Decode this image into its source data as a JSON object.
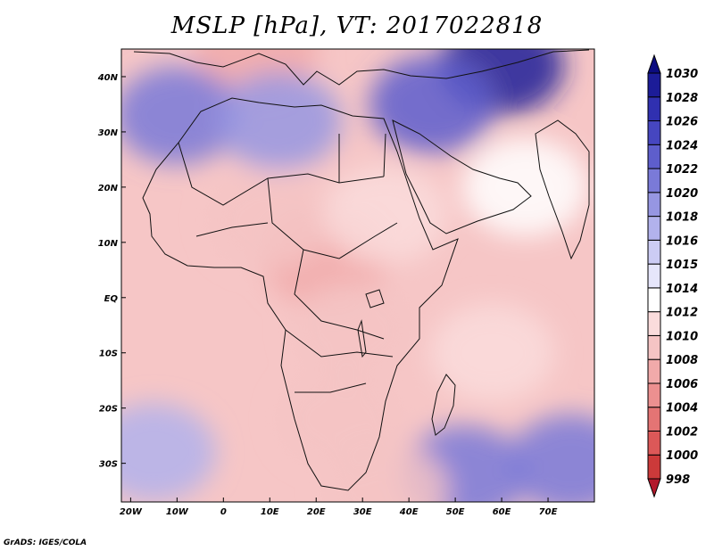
{
  "title": "MSLP [hPa], VT: 2017022818",
  "credit": "GrADS: IGES/COLA",
  "x_axis": {
    "labels": [
      "20W",
      "10W",
      "0",
      "10E",
      "20E",
      "30E",
      "40E",
      "50E",
      "60E",
      "70E"
    ],
    "values": [
      -20,
      -10,
      0,
      10,
      20,
      30,
      40,
      50,
      60,
      70
    ],
    "range": [
      -22,
      80
    ]
  },
  "y_axis": {
    "labels": [
      "40N",
      "30N",
      "20N",
      "10N",
      "EQ",
      "10S",
      "20S",
      "30S"
    ],
    "values": [
      40,
      30,
      20,
      10,
      0,
      -10,
      -20,
      -30
    ],
    "range": [
      -37,
      45
    ]
  },
  "colorbar": {
    "levels": [
      "998",
      "1000",
      "1002",
      "1004",
      "1006",
      "1008",
      "1010",
      "1012",
      "1014",
      "1015",
      "1016",
      "1018",
      "1020",
      "1022",
      "1024",
      "1026",
      "1028",
      "1030"
    ],
    "colors": [
      "#b2182b",
      "#cc3a3a",
      "#dc5858",
      "#e47474",
      "#ec9090",
      "#f1aaaa",
      "#f5c4c4",
      "#fadcdc",
      "#ffffff",
      "#e6e6fb",
      "#ccccf4",
      "#b2b2ec",
      "#9696e2",
      "#7a7ad8",
      "#5e5ecc",
      "#4646c0",
      "#3030b0",
      "#1c1c98",
      "#0c0c80"
    ]
  },
  "pressure_centers": [
    {
      "lon": 22,
      "lat": 7,
      "value": 1006
    },
    {
      "lon": 10,
      "lat": 14,
      "value": 1008
    },
    {
      "lon": 28,
      "lat": -6,
      "value": 1008
    },
    {
      "lon": 25,
      "lat": -22,
      "value": 1009
    },
    {
      "lon": 7,
      "lat": 45,
      "value": 1006
    },
    {
      "lon": 35,
      "lat": 15,
      "value": 1010
    },
    {
      "lon": 65,
      "lat": 20,
      "value": 1012
    },
    {
      "lon": 58,
      "lat": -10,
      "value": 1010
    },
    {
      "lon": -10,
      "lat": 33,
      "value": 1021
    },
    {
      "lon": 12,
      "lat": 32,
      "value": 1019
    },
    {
      "lon": 60,
      "lat": 42,
      "value": 1029
    },
    {
      "lon": 45,
      "lat": 35,
      "value": 1023
    },
    {
      "lon": 52,
      "lat": -32,
      "value": 1021
    },
    {
      "lon": -15,
      "lat": -28,
      "value": 1017
    },
    {
      "lon": 35,
      "lat": -35,
      "value": 1008
    },
    {
      "lon": 75,
      "lat": -30,
      "value": 1020
    }
  ]
}
